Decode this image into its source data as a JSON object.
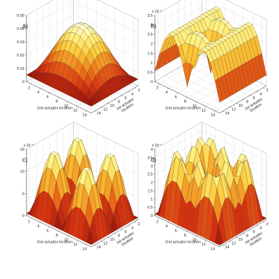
{
  "chart_data": [
    {
      "panel": "a)",
      "type": "surface",
      "xlabel": "2nd actuator location",
      "ylabel": "1st actuator location",
      "xticks": [
        "2",
        "4",
        "6",
        "8",
        "10",
        "12",
        "14"
      ],
      "yticks": [
        "2",
        "4",
        "6",
        "8",
        "10",
        "12",
        "14"
      ],
      "zticks": [
        "0",
        "0.01",
        "0.02",
        "0.03",
        "0.04",
        "0.05"
      ],
      "zlim": [
        0,
        0.05
      ],
      "x_range": [
        1,
        15
      ],
      "y_range": [
        1,
        15
      ],
      "colormap": "autumn (red to yellow)",
      "shape": "single dome",
      "z_min": 0.005,
      "z_max": 0.045,
      "peak_at": [
        8,
        8
      ]
    },
    {
      "panel": "b)",
      "type": "surface",
      "xlabel": "2nd actuator location",
      "ylabel": "1st actuator location",
      "xticks": [
        "2",
        "4",
        "6",
        "8",
        "10",
        "12",
        "14"
      ],
      "yticks": [
        "2",
        "4",
        "6",
        "8",
        "10",
        "12",
        "14"
      ],
      "zticks": [
        "0",
        "0.5",
        "1",
        "1.5",
        "2",
        "2.5",
        "3",
        "3.5"
      ],
      "z_exponent": "x 10⁻³",
      "zlim": [
        0,
        3.5
      ],
      "x_range": [
        1,
        15
      ],
      "y_range": [
        1,
        15
      ],
      "colormap": "autumn (red to yellow)",
      "shape": "ridges with saddle",
      "z_min": 0.1,
      "z_max": 3.2
    },
    {
      "panel": "c)",
      "type": "surface",
      "xlabel": "2nd actuator location",
      "ylabel": "1st actuator location",
      "xticks": [
        "2",
        "4",
        "6",
        "8",
        "10",
        "12",
        "14"
      ],
      "yticks": [
        "2",
        "4",
        "6",
        "8",
        "10",
        "12",
        "14"
      ],
      "zticks": [
        "0",
        "5",
        "10",
        "15"
      ],
      "z_exponent": "x 10⁻³",
      "zlim": [
        0,
        15
      ],
      "x_range": [
        1,
        15
      ],
      "y_range": [
        1,
        15
      ],
      "colormap": "autumn (red to yellow)",
      "shape": "four domes",
      "z_min": 0.5,
      "z_max": 15
    },
    {
      "panel": "d)",
      "type": "surface",
      "xlabel": "2nd actuator location",
      "ylabel": "1st actuator location",
      "xticks": [
        "2",
        "4",
        "6",
        "8",
        "10",
        "12",
        "14"
      ],
      "yticks": [
        "2",
        "4",
        "6",
        "8",
        "10",
        "12",
        "14"
      ],
      "zticks": [
        "0",
        "0.5",
        "1",
        "1.5",
        "2",
        "2.5",
        "3",
        "3.5",
        "4"
      ],
      "z_exponent": "x 10⁻³",
      "zlim": [
        0,
        4
      ],
      "x_range": [
        1,
        15
      ],
      "y_range": [
        1,
        15
      ],
      "colormap": "autumn (red to yellow)",
      "shape": "multiple ridges",
      "z_min": 0.1,
      "z_max": 4
    }
  ]
}
